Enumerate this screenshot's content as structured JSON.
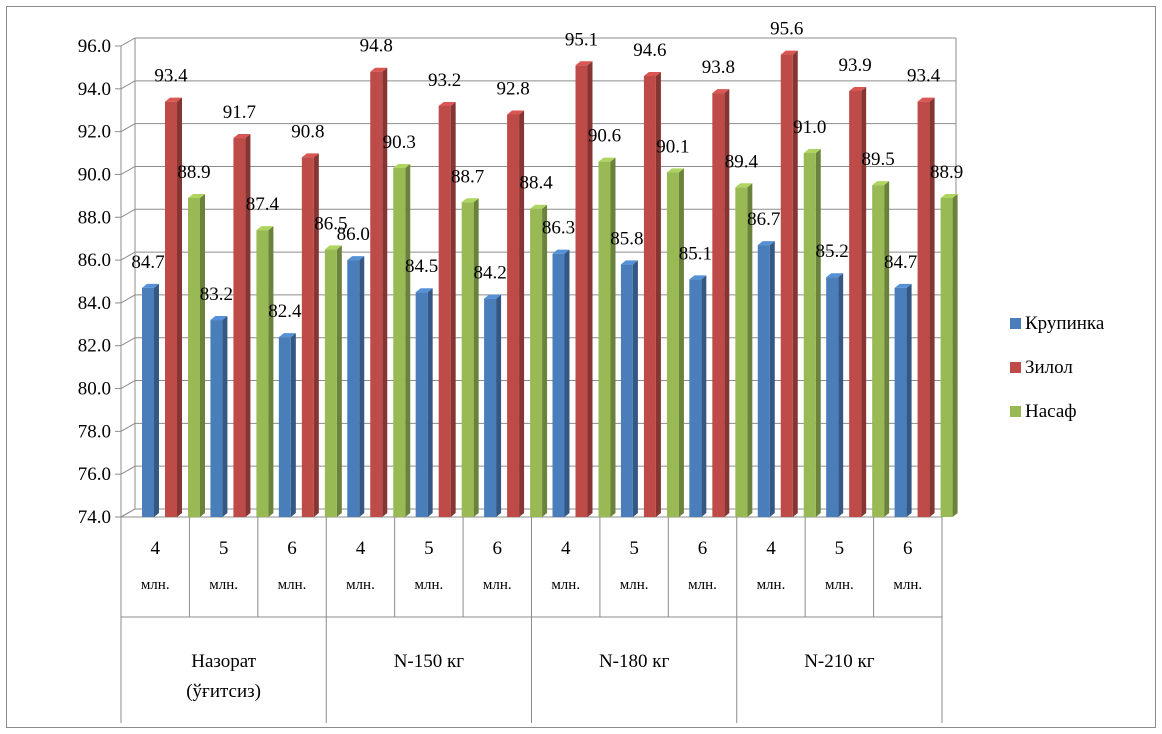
{
  "chart_data": {
    "type": "bar",
    "ylim": [
      74.0,
      96.0
    ],
    "ytick_step": 2.0,
    "y_ticks": [
      "74.0",
      "76.0",
      "78.0",
      "80.0",
      "82.0",
      "84.0",
      "86.0",
      "88.0",
      "90.0",
      "92.0",
      "94.0",
      "96.0"
    ],
    "grid": true,
    "legend_position": "right",
    "groups": [
      {
        "label": "Назорат\n(ўғитсиз)",
        "categories": [
          "4\nмлн.",
          "5\nмлн.",
          "6\nмлн."
        ]
      },
      {
        "label": "N-150 кг",
        "categories": [
          "4\nмлн.",
          "5\nмлн.",
          "6\nмлн."
        ]
      },
      {
        "label": "N-180 кг",
        "categories": [
          "4\nмлн.",
          "5\nмлн.",
          "6\nмлн."
        ]
      },
      {
        "label": "N-210 кг",
        "categories": [
          "4\nмлн.",
          "5\nмлн.",
          "6\nмлн."
        ]
      }
    ],
    "series": [
      {
        "name": "Крупинка",
        "color": "#4a7ebb",
        "values": [
          84.7,
          83.2,
          82.4,
          86.0,
          84.5,
          84.2,
          86.3,
          85.8,
          85.1,
          86.7,
          85.2,
          84.7
        ]
      },
      {
        "name": "Зилол",
        "color": "#be4b48",
        "values": [
          93.4,
          91.7,
          90.8,
          94.8,
          93.2,
          92.8,
          95.1,
          94.6,
          93.8,
          95.6,
          93.9,
          93.4
        ]
      },
      {
        "name": "Насаф",
        "color": "#98b954",
        "values": [
          88.9,
          87.4,
          86.5,
          90.3,
          88.7,
          88.4,
          90.6,
          90.1,
          89.4,
          91.0,
          89.5,
          88.9
        ]
      }
    ]
  }
}
